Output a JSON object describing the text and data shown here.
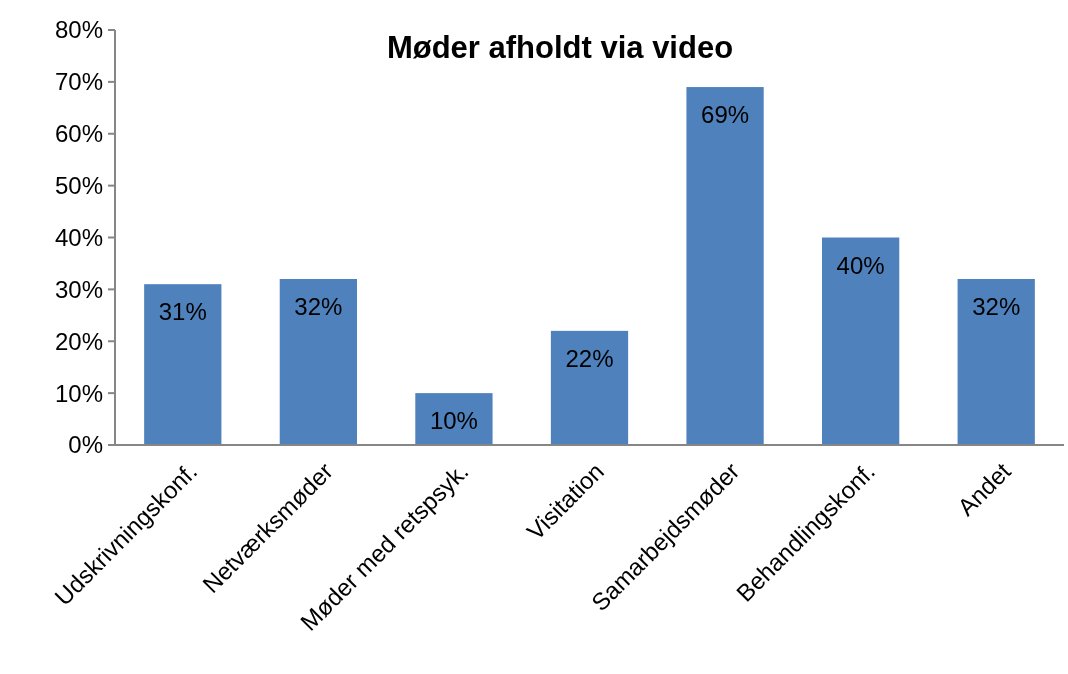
{
  "chart_data": {
    "type": "bar",
    "title": "Møder afholdt via video",
    "categories": [
      "Udskrivningskonf.",
      "Netværksmøder",
      "Møder med retspsyk.",
      "Visitation",
      "Samarbejdsmøder",
      "Behandlingskonf.",
      "Andet"
    ],
    "values": [
      31,
      32,
      10,
      22,
      69,
      40,
      32
    ],
    "value_labels": [
      "31%",
      "32%",
      "10%",
      "22%",
      "69%",
      "40%",
      "32%"
    ],
    "color": "#4f81bd",
    "ylim": [
      0,
      80
    ],
    "yticks": [
      {
        "value": 0,
        "label": "0%"
      },
      {
        "value": 10,
        "label": "10%"
      },
      {
        "value": 20,
        "label": "20%"
      },
      {
        "value": 30,
        "label": "30%"
      },
      {
        "value": 40,
        "label": "40%"
      },
      {
        "value": 50,
        "label": "50%"
      },
      {
        "value": 60,
        "label": "60%"
      },
      {
        "value": 70,
        "label": "70%"
      },
      {
        "value": 80,
        "label": "80%"
      }
    ],
    "grid": false
  }
}
